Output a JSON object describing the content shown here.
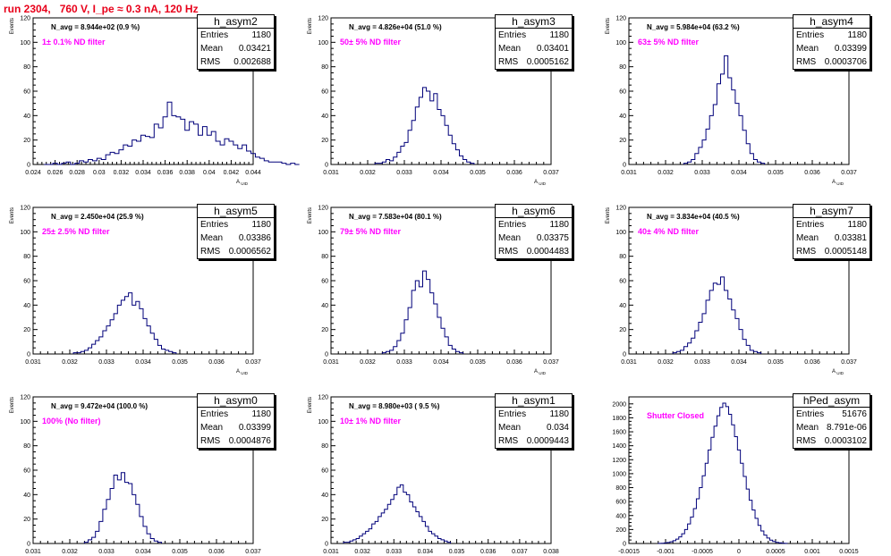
{
  "header": {
    "title": "run 2304,   760 V, I_pe ≈ 0.3 nA, 120 Hz"
  },
  "colors": {
    "title": "#e8001a",
    "filter_label": "#ff00ff",
    "histogram_line": "#00007a"
  },
  "chart_data": [
    {
      "type": "bar",
      "name": "h_asym2",
      "ylabel": "Events",
      "xlabel": "A_UID",
      "avg_label": "N_avg = 8.944e+02 (0.9 %)",
      "filter_label": "1± 0.1% ND filter",
      "stats": {
        "entries_label": "Entries",
        "entries": "1180",
        "mean_label": "Mean",
        "mean": "0.03421",
        "rms_label": "RMS",
        "rms": "0.002688"
      },
      "xlim": [
        0.024,
        0.044
      ],
      "ylim": [
        0,
        120
      ],
      "xticks": [
        "0.024",
        "0.026",
        "0.028",
        "0.03",
        "0.032",
        "0.034",
        "0.036",
        "0.038",
        "0.04",
        "0.042",
        "0.044"
      ],
      "yticks": [
        "0",
        "20",
        "40",
        "60",
        "80",
        "100",
        "120"
      ],
      "bin_start": 0.025,
      "bin_width": 0.0004,
      "values": [
        0,
        0,
        1,
        0,
        1,
        2,
        0,
        1,
        3,
        2,
        4,
        3,
        5,
        4,
        8,
        10,
        9,
        12,
        16,
        15,
        20,
        19,
        24,
        23,
        22,
        33,
        30,
        39,
        51,
        40,
        39,
        37,
        28,
        35,
        33,
        24,
        31,
        24,
        27,
        19,
        16,
        21,
        19,
        16,
        13,
        16,
        11,
        9,
        6,
        5,
        3,
        2,
        2,
        2,
        1,
        0,
        1,
        0
      ]
    },
    {
      "type": "bar",
      "name": "h_asym3",
      "ylabel": "Events",
      "xlabel": "A_UID",
      "avg_label": "N_avg = 4.826e+04 (51.0 %)",
      "filter_label": "50± 5% ND filter",
      "stats": {
        "entries_label": "Entries",
        "entries": "1180",
        "mean_label": "Mean",
        "mean": "0.03401",
        "rms_label": "RMS",
        "rms": "0.0005162"
      },
      "xlim": [
        0.031,
        0.037
      ],
      "ylim": [
        0,
        120
      ],
      "xticks": [
        "0.031",
        "0.032",
        "0.033",
        "0.034",
        "0.035",
        "0.036",
        "0.037"
      ],
      "yticks": [
        "0",
        "20",
        "40",
        "60",
        "80",
        "100",
        "120"
      ],
      "bin_start": 0.0322,
      "bin_width": 0.0001,
      "values": [
        1,
        1,
        2,
        4,
        3,
        6,
        10,
        15,
        18,
        28,
        36,
        47,
        55,
        63,
        60,
        52,
        58,
        45,
        40,
        32,
        24,
        17,
        12,
        7,
        4,
        2,
        1
      ]
    },
    {
      "type": "bar",
      "name": "h_asym4",
      "ylabel": "Events",
      "xlabel": "A_UID",
      "avg_label": "N_avg = 5.984e+04 (63.2 %)",
      "filter_label": "63± 5% ND filter",
      "stats": {
        "entries_label": "Entries",
        "entries": "1180",
        "mean_label": "Mean",
        "mean": "0.03399",
        "rms_label": "RMS",
        "rms": "0.0003706"
      },
      "xlim": [
        0.031,
        0.037
      ],
      "ylim": [
        0,
        120
      ],
      "xticks": [
        "0.031",
        "0.032",
        "0.033",
        "0.034",
        "0.035",
        "0.036",
        "0.037"
      ],
      "yticks": [
        "0",
        "20",
        "40",
        "60",
        "80",
        "100",
        "120"
      ],
      "bin_start": 0.0325,
      "bin_width": 0.0001,
      "values": [
        1,
        2,
        4,
        9,
        14,
        20,
        29,
        40,
        49,
        66,
        74,
        89,
        71,
        61,
        50,
        40,
        28,
        17,
        9,
        4,
        2,
        1
      ]
    },
    {
      "type": "bar",
      "name": "h_asym5",
      "ylabel": "Events",
      "xlabel": "A_UID",
      "avg_label": "N_avg = 2.450e+04 (25.9 %)",
      "filter_label": "25± 2.5% ND filter",
      "stats": {
        "entries_label": "Entries",
        "entries": "1180",
        "mean_label": "Mean",
        "mean": "0.03386",
        "rms_label": "RMS",
        "rms": "0.0006562"
      },
      "xlim": [
        0.031,
        0.037
      ],
      "ylim": [
        0,
        120
      ],
      "xticks": [
        "0.031",
        "0.032",
        "0.033",
        "0.034",
        "0.035",
        "0.036",
        "0.037"
      ],
      "yticks": [
        "0",
        "20",
        "40",
        "60",
        "80",
        "100",
        "120"
      ],
      "bin_start": 0.0321,
      "bin_width": 0.0001,
      "values": [
        1,
        1,
        2,
        3,
        5,
        8,
        11,
        14,
        19,
        23,
        28,
        33,
        40,
        44,
        47,
        50,
        40,
        43,
        37,
        29,
        23,
        17,
        12,
        7,
        4,
        3,
        2,
        1
      ]
    },
    {
      "type": "bar",
      "name": "h_asym6",
      "ylabel": "Events",
      "xlabel": "A_UID",
      "avg_label": "N_avg = 7.583e+04 (80.1 %)",
      "filter_label": "79± 5% ND filter",
      "stats": {
        "entries_label": "Entries",
        "entries": "1180",
        "mean_label": "Mean",
        "mean": "0.03375",
        "rms_label": "RMS",
        "rms": "0.0004483"
      },
      "xlim": [
        0.031,
        0.037
      ],
      "ylim": [
        0,
        120
      ],
      "xticks": [
        "0.031",
        "0.032",
        "0.033",
        "0.034",
        "0.035",
        "0.036",
        "0.037"
      ],
      "yticks": [
        "0",
        "20",
        "40",
        "60",
        "80",
        "100",
        "120"
      ],
      "bin_start": 0.0324,
      "bin_width": 0.0001,
      "values": [
        1,
        2,
        3,
        6,
        11,
        17,
        28,
        38,
        52,
        60,
        55,
        68,
        61,
        50,
        41,
        30,
        21,
        14,
        7,
        4,
        2,
        1
      ]
    },
    {
      "type": "bar",
      "name": "h_asym7",
      "ylabel": "Events",
      "xlabel": "A_UID",
      "avg_label": "N_avg = 3.834e+04 (40.5 %)",
      "filter_label": "40± 4% ND filter",
      "stats": {
        "entries_label": "Entries",
        "entries": "1180",
        "mean_label": "Mean",
        "mean": "0.03381",
        "rms_label": "RMS",
        "rms": "0.0005148"
      },
      "xlim": [
        0.031,
        0.037
      ],
      "ylim": [
        0,
        120
      ],
      "xticks": [
        "0.031",
        "0.032",
        "0.033",
        "0.034",
        "0.035",
        "0.036",
        "0.037"
      ],
      "yticks": [
        "0",
        "20",
        "40",
        "60",
        "80",
        "100",
        "120"
      ],
      "bin_start": 0.0322,
      "bin_width": 0.0001,
      "values": [
        1,
        2,
        3,
        6,
        9,
        13,
        19,
        26,
        33,
        44,
        52,
        58,
        57,
        63,
        52,
        45,
        36,
        29,
        20,
        12,
        7,
        3,
        2,
        1
      ]
    },
    {
      "type": "bar",
      "name": "h_asym0",
      "ylabel": "Events",
      "xlabel": "A_UID",
      "avg_label": "N_avg = 9.472e+04 (100.0 %)",
      "filter_label": "100% (No filter)",
      "stats": {
        "entries_label": "Entries",
        "entries": "1180",
        "mean_label": "Mean",
        "mean": "0.03399",
        "rms_label": "RMS",
        "rms": "0.0004876"
      },
      "xlim": [
        0.031,
        0.037
      ],
      "ylim": [
        0,
        120
      ],
      "xticks": [
        "0.031",
        "0.032",
        "0.033",
        "0.034",
        "0.035",
        "0.036",
        "0.037"
      ],
      "yticks": [
        "0",
        "20",
        "40",
        "60",
        "80",
        "100",
        "120"
      ],
      "bin_start": 0.0324,
      "bin_width": 0.0001,
      "values": [
        1,
        3,
        5,
        10,
        18,
        28,
        36,
        45,
        56,
        52,
        58,
        50,
        49,
        40,
        32,
        22,
        14,
        8,
        4,
        2,
        1
      ]
    },
    {
      "type": "bar",
      "name": "h_asym1",
      "ylabel": "Events",
      "xlabel": "A_UID",
      "avg_label": "N_avg = 8.980e+03 ( 9.5 %)",
      "filter_label": "10± 1% ND filter",
      "stats": {
        "entries_label": "Entries",
        "entries": "1180",
        "mean_label": "Mean",
        "mean": "0.034",
        "rms_label": "RMS",
        "rms": "0.0009443"
      },
      "xlim": [
        0.031,
        0.038
      ],
      "ylim": [
        0,
        120
      ],
      "xticks": [
        "0.031",
        "0.032",
        "0.033",
        "0.034",
        "0.035",
        "0.036",
        "0.037",
        "0.038"
      ],
      "yticks": [
        "0",
        "20",
        "40",
        "60",
        "80",
        "100",
        "120"
      ],
      "bin_start": 0.0314,
      "bin_width": 0.0001,
      "values": [
        1,
        1,
        2,
        3,
        4,
        6,
        8,
        10,
        12,
        16,
        18,
        22,
        25,
        28,
        32,
        36,
        40,
        46,
        48,
        42,
        40,
        34,
        30,
        26,
        22,
        18,
        14,
        10,
        8,
        6,
        4,
        3,
        2,
        1
      ]
    },
    {
      "type": "bar",
      "name": "hPed_asym",
      "ylabel": "",
      "xlabel": "",
      "avg_label": "",
      "filter_label": "Shutter Closed",
      "stats": {
        "entries_label": "Entries",
        "entries": "51676",
        "mean_label": "Mean",
        "mean": "8.791e-06",
        "rms_label": "RMS",
        "rms": "0.0003102"
      },
      "xlim": [
        -0.0015,
        0.0015
      ],
      "ylim": [
        0,
        2100
      ],
      "xticks": [
        "-0.0015",
        "-0.001",
        "-0.0005",
        "0",
        "0.0005",
        "0.001",
        "0.0015"
      ],
      "yticks": [
        "0",
        "200",
        "400",
        "600",
        "800",
        "1000",
        "1200",
        "1400",
        "1600",
        "1800",
        "2000"
      ],
      "bin_start": -0.0011,
      "bin_width": 4e-05,
      "values": [
        2,
        4,
        8,
        14,
        24,
        40,
        62,
        95,
        140,
        200,
        280,
        380,
        500,
        640,
        800,
        970,
        1150,
        1340,
        1520,
        1680,
        1830,
        1950,
        2010,
        1960,
        1850,
        1700,
        1530,
        1340,
        1150,
        960,
        780,
        620,
        480,
        360,
        260,
        180,
        120,
        78,
        48,
        28,
        16,
        9,
        5,
        2
      ]
    }
  ]
}
